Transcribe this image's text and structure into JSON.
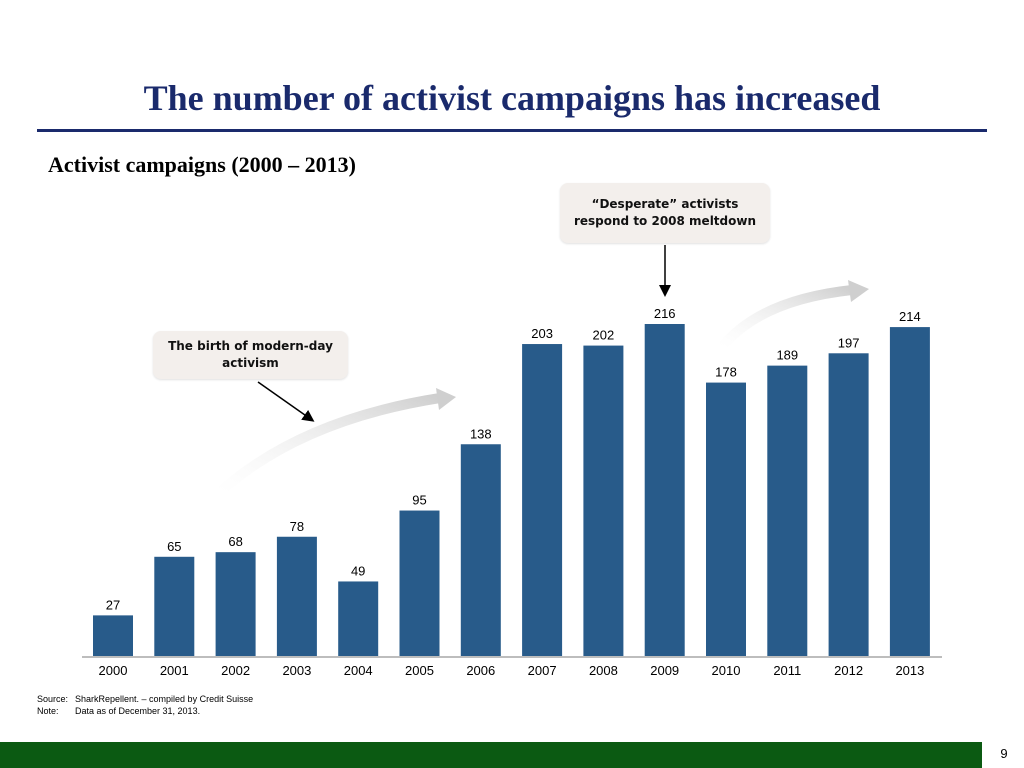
{
  "slide": {
    "title": "The number of activist campaigns has increased",
    "page_number": "9"
  },
  "callouts": {
    "meltdown": {
      "line1": "“Desperate” activists",
      "line2": "respond to 2008 meltdown"
    },
    "birth": {
      "line1": "The birth of modern-day",
      "line2": "activism"
    }
  },
  "footnotes": {
    "source_label": "Source:",
    "source_text": "SharkRepellent. – compiled by Credit Suisse",
    "note_label": "Note:",
    "note_text": "Data as of December 31, 2013."
  },
  "colors": {
    "bar": "#285b8a",
    "title": "#1a2a6c",
    "bottom_bar": "#0b5a12",
    "callout_bg": "#f3efec",
    "trend_arrow": "#d9d9d9"
  },
  "chart_data": {
    "type": "bar",
    "title": "Activist campaigns (2000 – 2013)",
    "categories": [
      "2000",
      "2001",
      "2002",
      "2003",
      "2004",
      "2005",
      "2006",
      "2007",
      "2008",
      "2009",
      "2010",
      "2011",
      "2012",
      "2013"
    ],
    "values": [
      27,
      65,
      68,
      78,
      49,
      95,
      138,
      203,
      202,
      216,
      178,
      189,
      197,
      214
    ],
    "xlabel": "",
    "ylabel": "",
    "ylim": [
      0,
      216
    ],
    "grid": false,
    "legend": "none",
    "data_labels": true
  }
}
